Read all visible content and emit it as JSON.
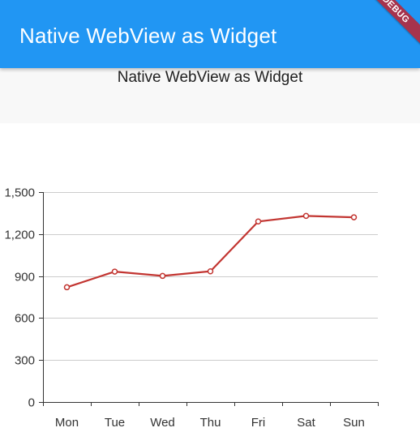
{
  "appbar": {
    "title": "Native WebView as Widget",
    "color": "#2196f3"
  },
  "subheader": {
    "text": "Native WebView as Widget"
  },
  "debug_banner": {
    "label": "DEBUG"
  },
  "chart_data": {
    "type": "line",
    "categories": [
      "Mon",
      "Tue",
      "Wed",
      "Thu",
      "Fri",
      "Sat",
      "Sun"
    ],
    "series": [
      {
        "name": "",
        "values": [
          820,
          932,
          901,
          934,
          1290,
          1330,
          1320
        ],
        "color": "#c23531"
      }
    ],
    "yticks": [
      0,
      300,
      600,
      900,
      1200,
      1500
    ],
    "ytick_labels": [
      "0",
      "300",
      "600",
      "900",
      "1,200",
      "1,500"
    ],
    "ylim": [
      0,
      1500
    ],
    "grid": true,
    "title": "",
    "xlabel": "",
    "ylabel": ""
  }
}
